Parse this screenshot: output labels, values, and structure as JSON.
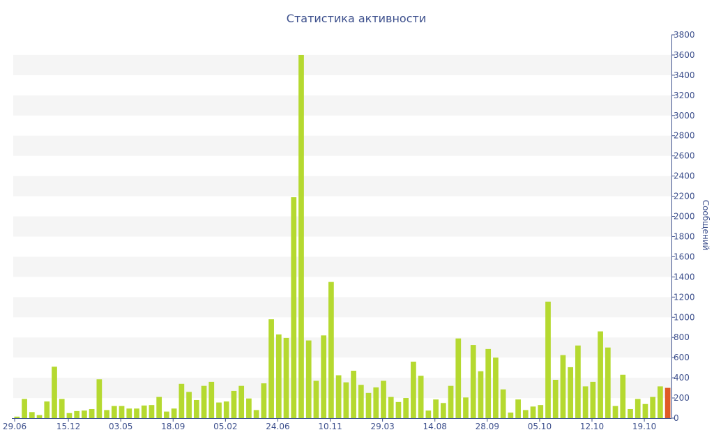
{
  "chart_data": {
    "type": "bar",
    "title": "Статистика активности",
    "xlabel": "",
    "ylabel": "Сообщений",
    "ylim": [
      0,
      3800
    ],
    "y_ticks": [
      0,
      200,
      400,
      600,
      800,
      1000,
      1200,
      1400,
      1600,
      1800,
      2000,
      2200,
      2400,
      2600,
      2800,
      3000,
      3200,
      3400,
      3600,
      3800
    ],
    "y_axis_position": "right",
    "grid": "alternating horizontal bands",
    "x_tick_labels": [
      {
        "label": "29.06",
        "index": 0
      },
      {
        "label": "15.12",
        "index": 7
      },
      {
        "label": "03.05",
        "index": 14
      },
      {
        "label": "18.09",
        "index": 21
      },
      {
        "label": "05.02",
        "index": 28
      },
      {
        "label": "24.06",
        "index": 35
      },
      {
        "label": "10.11",
        "index": 42
      },
      {
        "label": "29.03",
        "index": 49
      },
      {
        "label": "14.08",
        "index": 56
      },
      {
        "label": "28.09",
        "index": 63
      },
      {
        "label": "05.10",
        "index": 70
      },
      {
        "label": "12.10",
        "index": 77
      },
      {
        "label": "19.10",
        "index": 84
      }
    ],
    "values": [
      15,
      190,
      60,
      30,
      165,
      510,
      190,
      50,
      70,
      75,
      90,
      385,
      80,
      120,
      120,
      95,
      95,
      125,
      130,
      210,
      65,
      95,
      340,
      260,
      180,
      320,
      360,
      155,
      165,
      270,
      320,
      195,
      80,
      345,
      980,
      830,
      795,
      2190,
      3600,
      770,
      370,
      820,
      1350,
      425,
      355,
      470,
      330,
      250,
      305,
      370,
      210,
      160,
      200,
      560,
      420,
      75,
      185,
      150,
      320,
      790,
      205,
      725,
      465,
      685,
      600,
      285,
      55,
      185,
      80,
      115,
      130,
      1155,
      380,
      625,
      505,
      720,
      315,
      360,
      860,
      700,
      120,
      430,
      90,
      190,
      140,
      210,
      315,
      300
    ],
    "highlight_index": 87,
    "colors": {
      "bar": "#b5d930",
      "highlight": "#e05a25",
      "text": "#3c4f8c",
      "band": "#f5f5f5",
      "axis": "#3c4f8c"
    }
  }
}
